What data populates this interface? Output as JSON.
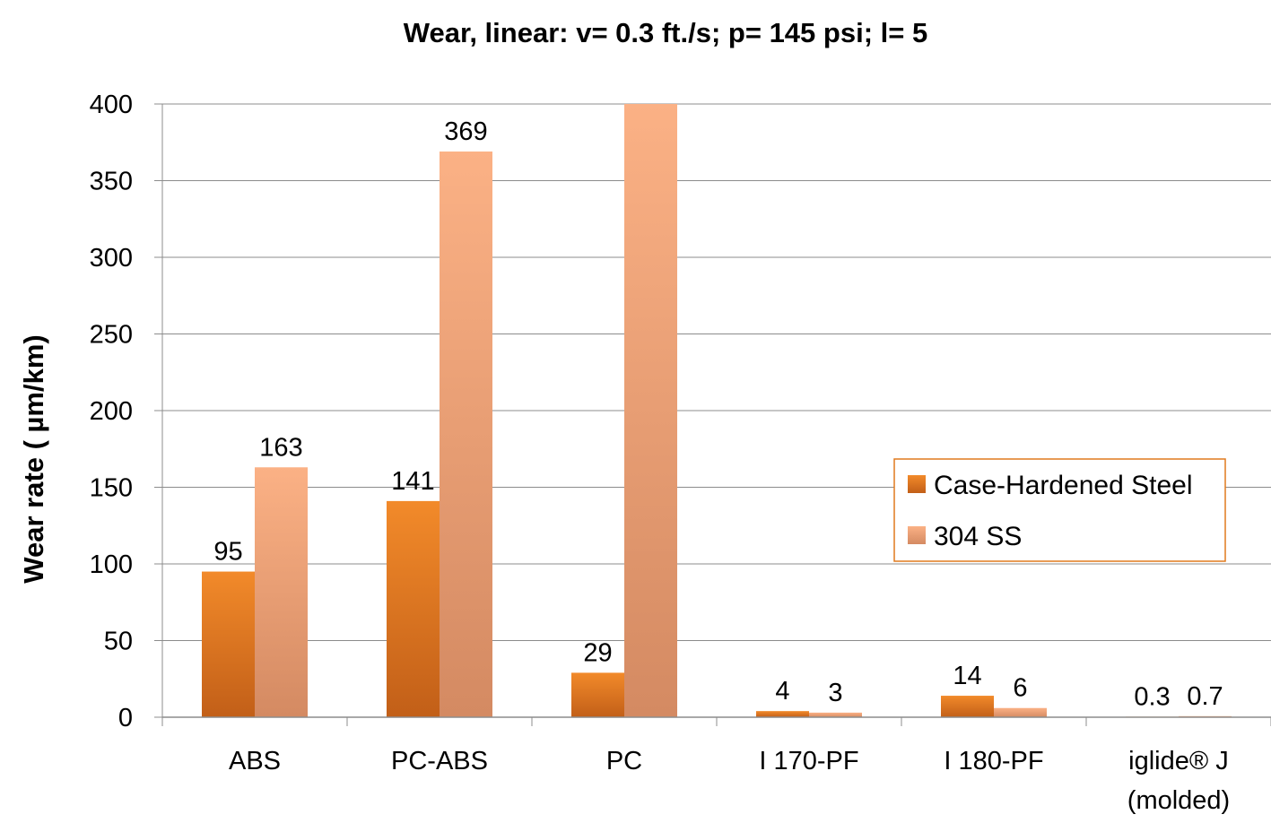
{
  "chart_data": {
    "type": "bar",
    "title": "Wear, linear: v= 0.3 ft./s; p= 145 psi;  l= 5",
    "xlabel": "",
    "ylabel": "Wear rate ( µm/km)",
    "ylim": [
      0,
      400
    ],
    "yticks": [
      0,
      50,
      100,
      150,
      200,
      250,
      300,
      350,
      400
    ],
    "grid": true,
    "legend": "right",
    "categories": [
      [
        "ABS"
      ],
      [
        "PC-ABS"
      ],
      [
        "PC"
      ],
      [
        "I 170-PF"
      ],
      [
        "I 180-PF"
      ],
      [
        "iglide® J",
        "(molded)"
      ]
    ],
    "series": [
      {
        "name": "Case-Hardened Steel",
        "color": "#e07a1e",
        "values": [
          95,
          141,
          29,
          4,
          14,
          0.3
        ],
        "labels": [
          "95",
          "141",
          "29",
          "4",
          "14",
          "0.3"
        ]
      },
      {
        "name": "304 SS",
        "color": "#f6ae7e",
        "values": [
          163,
          369,
          400,
          3,
          6,
          0.7
        ],
        "labels": [
          "163",
          "369",
          "",
          "3",
          "6",
          "0.7"
        ]
      }
    ]
  }
}
